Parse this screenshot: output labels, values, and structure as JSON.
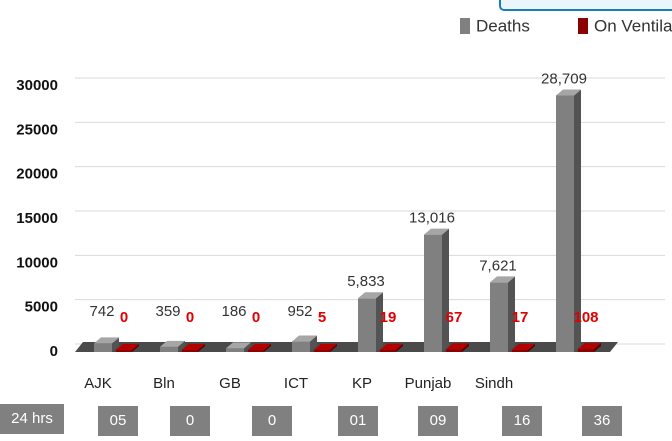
{
  "chart_data": {
    "type": "bar3d",
    "categories": [
      "AJK",
      "Bln",
      "GB",
      "ICT",
      "KP",
      "Punjab",
      "Sindh",
      null
    ],
    "series": [
      {
        "name": "Deaths",
        "color": "#808080",
        "values": [
          742,
          359,
          186,
          952,
          5833,
          13016,
          7621,
          28709
        ],
        "value_labels": [
          "742",
          "359",
          "186",
          "952",
          "5,833",
          "13,016",
          "7,621",
          "28,709"
        ]
      },
      {
        "name": "On Ventilator",
        "color": "#8b0000",
        "values": [
          0,
          0,
          0,
          5,
          19,
          67,
          17,
          108
        ]
      }
    ],
    "ylim": [
      0,
      30000
    ],
    "yticks": [
      0,
      5000,
      10000,
      15000,
      20000,
      25000,
      30000
    ],
    "grid": true,
    "row_label": "24 hrs",
    "row_values": [
      "05",
      "0",
      "0",
      "01",
      "09",
      "16",
      "36"
    ]
  }
}
